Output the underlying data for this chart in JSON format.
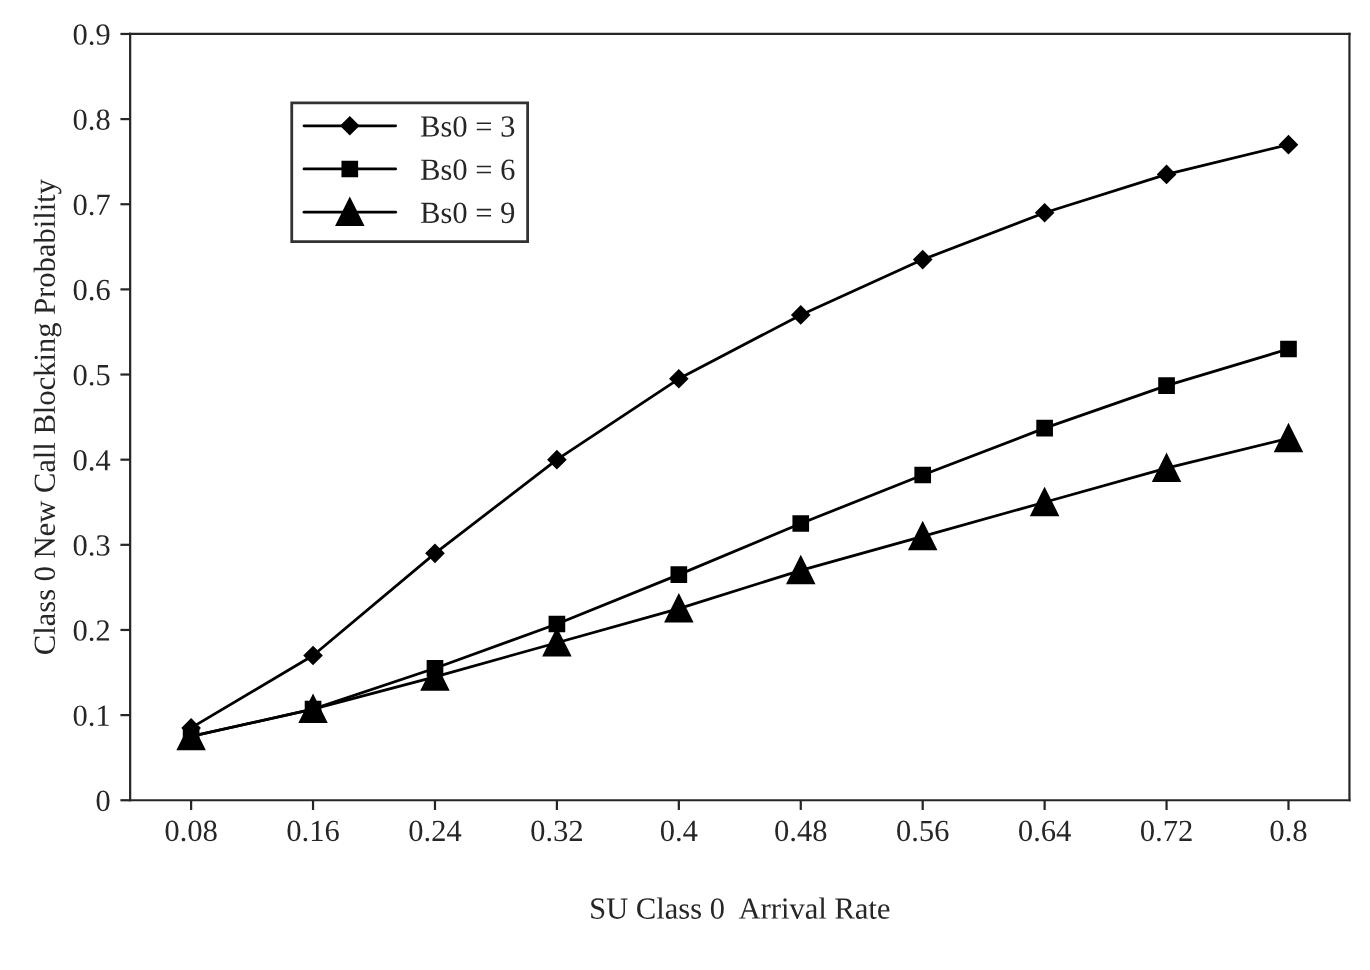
{
  "chart_data": {
    "type": "line",
    "xlabel": "SU Class 0  Arrival Rate",
    "ylabel": "Class 0 New Call Blocking Probability",
    "categories": [
      "0.08",
      "0.16",
      "0.24",
      "0.32",
      "0.4",
      "0.48",
      "0.56",
      "0.64",
      "0.72",
      "0.8"
    ],
    "series": [
      {
        "name": "Bs0 = 3",
        "color": "#000000",
        "marker": "diamond",
        "values": [
          0.085,
          0.17,
          0.29,
          0.4,
          0.495,
          0.57,
          0.635,
          0.69,
          0.735,
          0.77
        ]
      },
      {
        "name": "Bs0 = 6",
        "color": "#000000",
        "marker": "square",
        "values": [
          0.075,
          0.107,
          0.155,
          0.207,
          0.265,
          0.325,
          0.382,
          0.437,
          0.487,
          0.53
        ]
      },
      {
        "name": "Bs0 = 9",
        "color": "#000000",
        "marker": "triangle",
        "values": [
          0.075,
          0.107,
          0.145,
          0.185,
          0.225,
          0.27,
          0.31,
          0.35,
          0.39,
          0.425
        ]
      }
    ],
    "ylim": [
      0,
      0.9
    ],
    "yticks": [
      0,
      0.1,
      0.2,
      0.3,
      0.4,
      0.5,
      0.6,
      0.7,
      0.8,
      0.9
    ],
    "grid": false,
    "legend": "top left",
    "line_style": "solid"
  }
}
